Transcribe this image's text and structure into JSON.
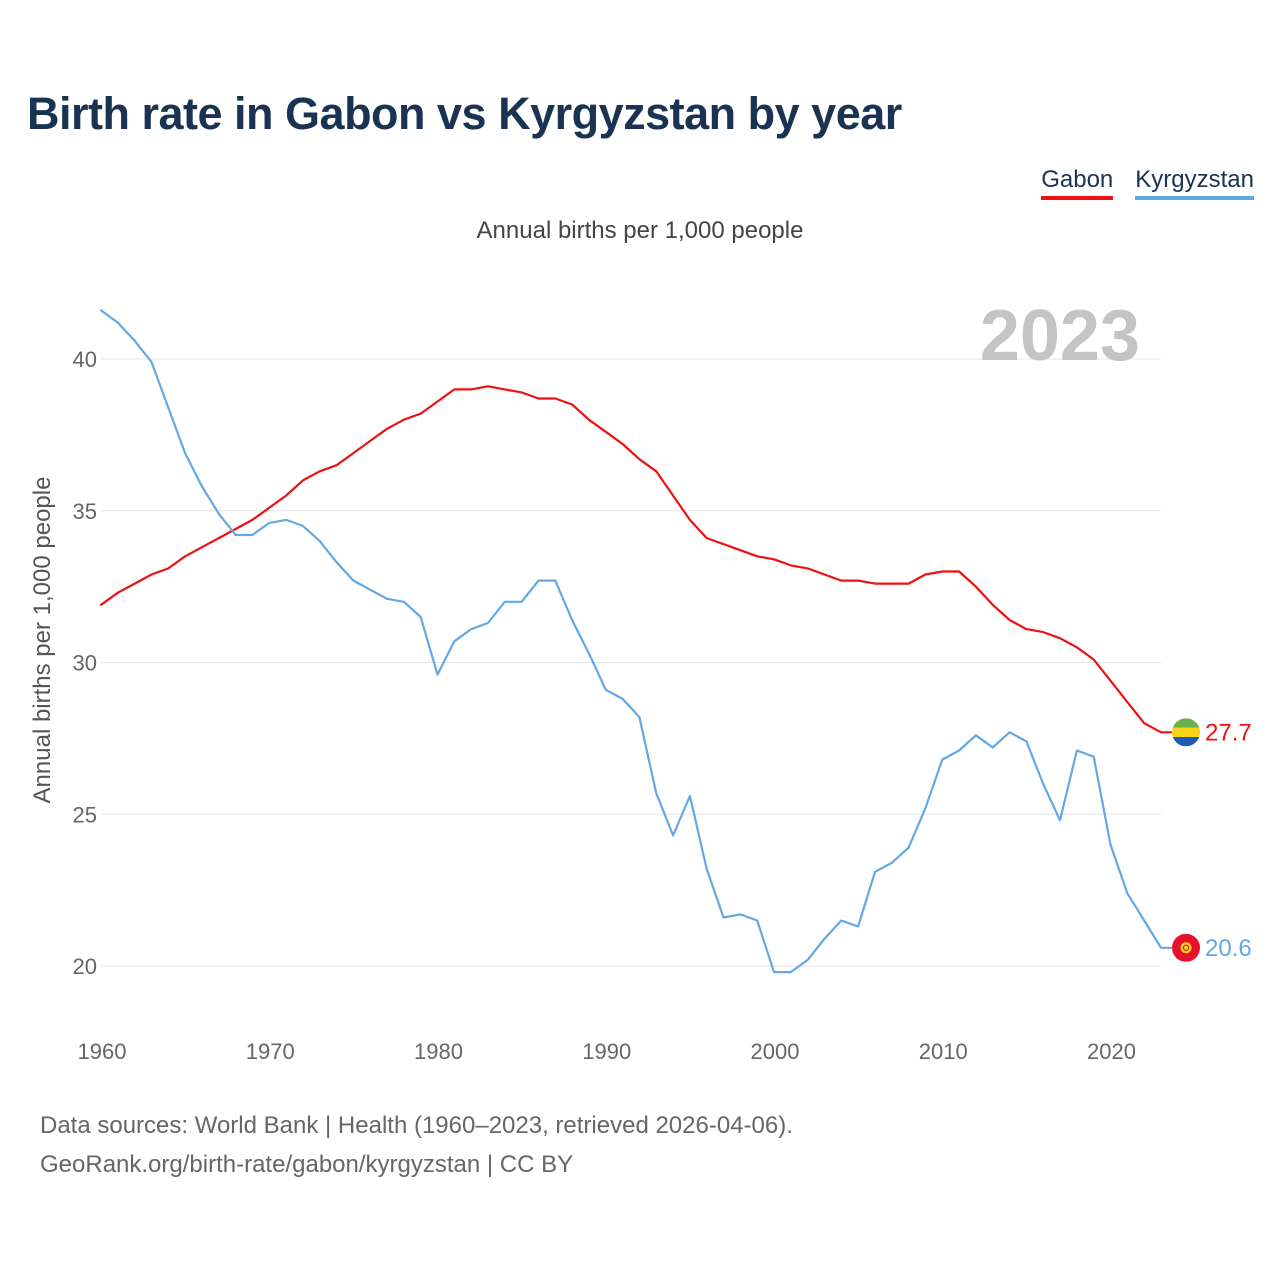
{
  "header": {
    "title": "Birth rate in Gabon vs Kyrgyzstan by year",
    "subtitle": "Annual births per 1,000 people"
  },
  "legend": [
    {
      "label": "Gabon",
      "color": "#ee1111"
    },
    {
      "label": "Kyrgyzstan",
      "color": "#62a8e5"
    }
  ],
  "footer": {
    "line1": "Data sources: World Bank | Health (1960–2023, retrieved 2026-04-06).",
    "line2": "GeoRank.org/birth-rate/gabon/kyrgyzstan | CC BY"
  },
  "chart_data": {
    "type": "line",
    "title": "Birth rate in Gabon vs Kyrgyzstan by year",
    "ylabel": "Annual births per 1,000 people",
    "xlabel": "",
    "xlim": [
      1960,
      2023
    ],
    "ylim": [
      18.5,
      42
    ],
    "yticks": [
      20,
      25,
      30,
      35,
      40
    ],
    "xticks": [
      1960,
      1970,
      1980,
      1990,
      2000,
      2010,
      2020
    ],
    "year_label": "2023",
    "grid": true,
    "legend_position": "top-right",
    "x": [
      1960,
      1961,
      1962,
      1963,
      1964,
      1965,
      1966,
      1967,
      1968,
      1969,
      1970,
      1971,
      1972,
      1973,
      1974,
      1975,
      1976,
      1977,
      1978,
      1979,
      1980,
      1981,
      1982,
      1983,
      1984,
      1985,
      1986,
      1987,
      1988,
      1989,
      1990,
      1991,
      1992,
      1993,
      1994,
      1995,
      1996,
      1997,
      1998,
      1999,
      2000,
      2001,
      2002,
      2003,
      2004,
      2005,
      2006,
      2007,
      2008,
      2009,
      2010,
      2011,
      2012,
      2013,
      2014,
      2015,
      2016,
      2017,
      2018,
      2019,
      2020,
      2021,
      2022,
      2023
    ],
    "series": [
      {
        "name": "Gabon",
        "color": "#ee1111",
        "flag": "gabon-flag",
        "end_label": "27.7",
        "values": [
          31.9,
          32.3,
          32.6,
          32.9,
          33.1,
          33.5,
          33.8,
          34.1,
          34.4,
          34.7,
          35.1,
          35.5,
          36.0,
          36.3,
          36.5,
          36.9,
          37.3,
          37.7,
          38.0,
          38.2,
          38.6,
          39.0,
          39.0,
          39.1,
          39.0,
          38.9,
          38.7,
          38.7,
          38.5,
          38.0,
          37.6,
          37.2,
          36.7,
          36.3,
          35.5,
          34.7,
          34.1,
          33.9,
          33.7,
          33.5,
          33.4,
          33.2,
          33.1,
          32.9,
          32.7,
          32.7,
          32.6,
          32.6,
          32.6,
          32.9,
          33.0,
          33.0,
          32.5,
          31.9,
          31.4,
          31.1,
          31.0,
          30.8,
          30.5,
          30.1,
          29.4,
          28.7,
          28.0,
          27.7
        ]
      },
      {
        "name": "Kyrgyzstan",
        "color": "#62a8e5",
        "flag": "kyrgyzstan-flag",
        "end_label": "20.6",
        "values": [
          41.6,
          41.2,
          40.6,
          39.9,
          38.4,
          36.9,
          35.8,
          34.9,
          34.2,
          34.2,
          34.6,
          34.7,
          34.5,
          34.0,
          33.3,
          32.7,
          32.4,
          32.1,
          32.0,
          31.5,
          29.6,
          30.7,
          31.1,
          31.3,
          32.0,
          32.0,
          32.7,
          32.7,
          31.4,
          30.3,
          29.1,
          28.8,
          28.2,
          25.7,
          24.3,
          25.6,
          23.2,
          21.6,
          21.7,
          21.5,
          19.8,
          19.8,
          20.2,
          20.9,
          21.5,
          21.3,
          23.1,
          23.4,
          23.9,
          25.2,
          26.8,
          27.1,
          27.6,
          27.2,
          27.7,
          27.4,
          26.0,
          24.8,
          27.1,
          26.9,
          24.0,
          22.4,
          21.5,
          20.6
        ]
      }
    ]
  }
}
